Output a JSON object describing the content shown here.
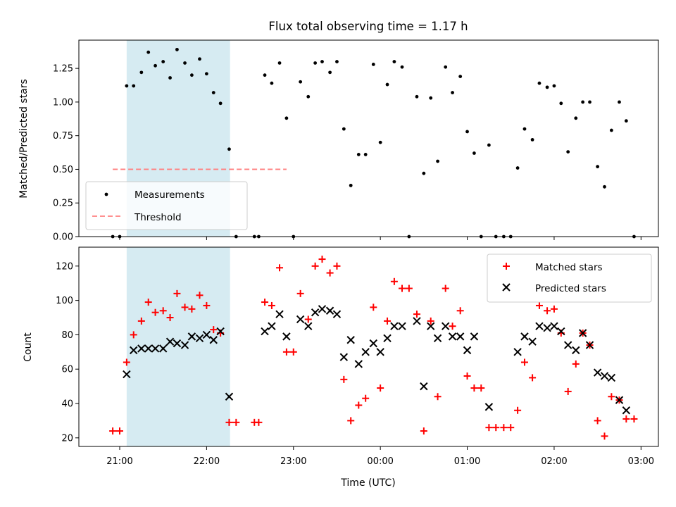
{
  "chart_data": [
    {
      "type": "scatter",
      "title": "Flux total observing time = 1.17 h",
      "xlabel": "",
      "ylabel": "Matched/Predicted stars",
      "ylim": [
        0,
        1.46
      ],
      "yticks": [
        "0.00",
        "0.25",
        "0.50",
        "0.75",
        "1.00",
        "1.25"
      ],
      "shaded_region_hours": [
        21.08,
        22.27
      ],
      "shaded_color": "#add8e6",
      "legend_position": "lower-left",
      "threshold": {
        "name": "Threshold",
        "value": 0.5,
        "x_range": [
          20.92,
          22.92
        ],
        "color": "#ff8080"
      },
      "series": [
        {
          "name": "Measurements",
          "color": "#000000",
          "x": [
            20.92,
            21.0,
            21.08,
            21.16,
            21.25,
            21.33,
            21.41,
            21.5,
            21.58,
            21.66,
            21.75,
            21.83,
            21.92,
            22.0,
            22.08,
            22.16,
            22.26,
            22.34,
            22.55,
            22.6,
            22.67,
            22.75,
            22.84,
            22.92,
            23.0,
            23.08,
            23.17,
            23.25,
            23.33,
            23.42,
            23.5,
            23.58,
            23.66,
            23.75,
            23.83,
            23.92,
            24.0,
            24.08,
            24.16,
            24.25,
            24.33,
            24.42,
            24.5,
            24.58,
            24.66,
            24.75,
            24.83,
            24.92,
            25.0,
            25.08,
            25.16,
            25.25,
            25.33,
            25.42,
            25.5,
            25.58,
            25.66,
            25.75,
            25.83,
            25.92,
            26.0,
            26.08,
            26.16,
            26.25,
            26.33,
            26.41,
            26.5,
            26.58,
            26.66,
            26.75,
            26.83,
            26.92
          ],
          "y": [
            0.0,
            0.0,
            1.12,
            1.12,
            1.22,
            1.37,
            1.27,
            1.3,
            1.18,
            1.39,
            1.29,
            1.2,
            1.32,
            1.21,
            1.07,
            0.99,
            0.65,
            0.0,
            0.0,
            0.0,
            1.2,
            1.14,
            1.29,
            0.88,
            0.0,
            1.15,
            1.04,
            1.29,
            1.3,
            1.22,
            1.3,
            0.8,
            0.38,
            0.61,
            0.61,
            1.28,
            0.7,
            1.13,
            1.3,
            1.26,
            0.0,
            1.04,
            0.47,
            1.03,
            0.56,
            1.26,
            1.07,
            1.19,
            0.78,
            0.62,
            0.0,
            0.68,
            0.0,
            0.0,
            0.0,
            0.51,
            0.8,
            0.72,
            1.14,
            1.11,
            1.12,
            0.99,
            0.63,
            0.88,
            1.0,
            1.0,
            0.52,
            0.37,
            0.79,
            1.0,
            0.86,
            0.0
          ]
        }
      ]
    },
    {
      "type": "scatter",
      "title": "",
      "xlabel": "Time (UTC)",
      "ylabel": "Count",
      "ylim": [
        15,
        131
      ],
      "yticks": [
        "20",
        "40",
        "60",
        "80",
        "100",
        "120"
      ],
      "xticks": [
        "21:00",
        "22:00",
        "23:00",
        "00:00",
        "01:00",
        "02:00",
        "03:00"
      ],
      "xtick_hours": [
        21,
        22,
        23,
        24,
        25,
        26,
        27
      ],
      "shaded_region_hours": [
        21.08,
        22.27
      ],
      "shaded_color": "#add8e6",
      "legend_position": "top-right",
      "series": [
        {
          "name": "Matched stars",
          "marker": "plus",
          "color": "#ff0000",
          "x": [
            20.92,
            21.0,
            21.08,
            21.16,
            21.25,
            21.33,
            21.41,
            21.5,
            21.58,
            21.66,
            21.75,
            21.83,
            21.92,
            22.0,
            22.08,
            22.16,
            22.26,
            22.34,
            22.55,
            22.6,
            22.67,
            22.75,
            22.84,
            22.92,
            23.0,
            23.08,
            23.17,
            23.25,
            23.33,
            23.42,
            23.5,
            23.58,
            23.66,
            23.75,
            23.83,
            23.92,
            24.0,
            24.08,
            24.16,
            24.25,
            24.33,
            24.42,
            24.5,
            24.58,
            24.66,
            24.75,
            24.83,
            24.92,
            25.0,
            25.08,
            25.16,
            25.25,
            25.33,
            25.42,
            25.5,
            25.58,
            25.66,
            25.75,
            25.83,
            25.92,
            26.0,
            26.08,
            26.16,
            26.25,
            26.33,
            26.41,
            26.5,
            26.58,
            26.66,
            26.75,
            26.83,
            26.92
          ],
          "y": [
            24,
            24,
            64,
            80,
            88,
            99,
            93,
            94,
            90,
            104,
            96,
            95,
            103,
            97,
            83,
            81,
            29,
            29,
            29,
            29,
            99,
            97,
            119,
            70,
            70,
            104,
            89,
            120,
            124,
            116,
            120,
            54,
            30,
            39,
            43,
            96,
            49,
            88,
            111,
            107,
            107,
            92,
            24,
            88,
            44,
            107,
            85,
            94,
            56,
            49,
            49,
            26,
            26,
            26,
            26,
            36,
            64,
            55,
            97,
            94,
            95,
            81,
            47,
            63,
            81,
            74,
            30,
            21,
            44,
            42,
            31,
            31
          ]
        },
        {
          "name": "Predicted stars",
          "marker": "x",
          "color": "#000000",
          "x": [
            21.08,
            21.16,
            21.25,
            21.33,
            21.41,
            21.5,
            21.58,
            21.66,
            21.75,
            21.83,
            21.92,
            22.0,
            22.08,
            22.16,
            22.26,
            22.67,
            22.75,
            22.84,
            22.92,
            23.08,
            23.17,
            23.25,
            23.33,
            23.42,
            23.5,
            23.58,
            23.66,
            23.75,
            23.83,
            23.92,
            24.0,
            24.08,
            24.16,
            24.25,
            24.42,
            24.5,
            24.58,
            24.66,
            24.75,
            24.83,
            24.92,
            25.0,
            25.08,
            25.25,
            25.58,
            25.66,
            25.75,
            25.83,
            25.92,
            26.0,
            26.08,
            26.16,
            26.25,
            26.33,
            26.41,
            26.5,
            26.58,
            26.66,
            26.75,
            26.83
          ],
          "y": [
            57,
            71,
            72,
            72,
            72,
            72,
            76,
            75,
            74,
            79,
            78,
            80,
            77,
            82,
            44,
            82,
            85,
            92,
            79,
            89,
            85,
            93,
            95,
            94,
            92,
            67,
            77,
            63,
            70,
            75,
            70,
            78,
            85,
            85,
            88,
            50,
            85,
            78,
            85,
            79,
            79,
            71,
            79,
            38,
            70,
            79,
            76,
            85,
            84,
            85,
            82,
            74,
            71,
            81,
            74,
            58,
            56,
            55,
            42,
            36
          ]
        }
      ]
    }
  ]
}
